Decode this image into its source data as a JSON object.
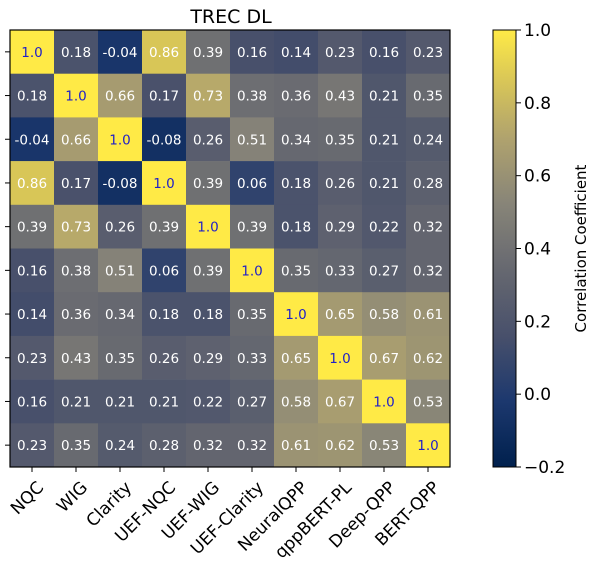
{
  "chart_data": {
    "type": "heatmap",
    "title": "TREC DL",
    "categories": [
      "NQC",
      "WIG",
      "Clarity",
      "UEF-NQC",
      "UEF-WIG",
      "UEF-Clarity",
      "NeuralQPP",
      "qppBERT-PL",
      "Deep-QPP",
      "BERT-QPP"
    ],
    "cell_labels": [
      [
        "1.0",
        "0.18",
        "-0.04",
        "0.86",
        "0.39",
        "0.16",
        "0.14",
        "0.23",
        "0.16",
        "0.23"
      ],
      [
        "0.18",
        "1.0",
        "0.66",
        "0.17",
        "0.73",
        "0.38",
        "0.36",
        "0.43",
        "0.21",
        "0.35"
      ],
      [
        "-0.04",
        "0.66",
        "1.0",
        "-0.08",
        "0.26",
        "0.51",
        "0.34",
        "0.35",
        "0.21",
        "0.24"
      ],
      [
        "0.86",
        "0.17",
        "-0.08",
        "1.0",
        "0.39",
        "0.06",
        "0.18",
        "0.26",
        "0.21",
        "0.28"
      ],
      [
        "0.39",
        "0.73",
        "0.26",
        "0.39",
        "1.0",
        "0.39",
        "0.18",
        "0.29",
        "0.22",
        "0.32"
      ],
      [
        "0.16",
        "0.38",
        "0.51",
        "0.06",
        "0.39",
        "1.0",
        "0.35",
        "0.33",
        "0.27",
        "0.32"
      ],
      [
        "0.14",
        "0.36",
        "0.34",
        "0.18",
        "0.18",
        "0.35",
        "1.0",
        "0.65",
        "0.58",
        "0.61"
      ],
      [
        "0.23",
        "0.43",
        "0.35",
        "0.26",
        "0.29",
        "0.33",
        "0.65",
        "1.0",
        "0.67",
        "0.62"
      ],
      [
        "0.16",
        "0.21",
        "0.21",
        "0.21",
        "0.22",
        "0.27",
        "0.58",
        "0.67",
        "1.0",
        "0.53"
      ],
      [
        "0.23",
        "0.35",
        "0.24",
        "0.28",
        "0.32",
        "0.32",
        "0.61",
        "0.62",
        "0.53",
        "1.0"
      ]
    ],
    "colorbar": {
      "label": "Correlation Coefficient",
      "range": [
        -0.2,
        1.0
      ],
      "ticks": [
        1.0,
        0.8,
        0.6,
        0.4,
        0.2,
        0.0,
        -0.2
      ],
      "tick_labels": [
        "1.0",
        "0.8",
        "0.6",
        "0.4",
        "0.2",
        "0.0",
        "−0.2"
      ]
    },
    "colormap": "cividis",
    "colors": {
      "low": "#00204d",
      "mid": "#7b7b78",
      "high": "#ffea46",
      "diagonal_text": "#1f1fc8",
      "cell_text": "#ffffff"
    }
  }
}
